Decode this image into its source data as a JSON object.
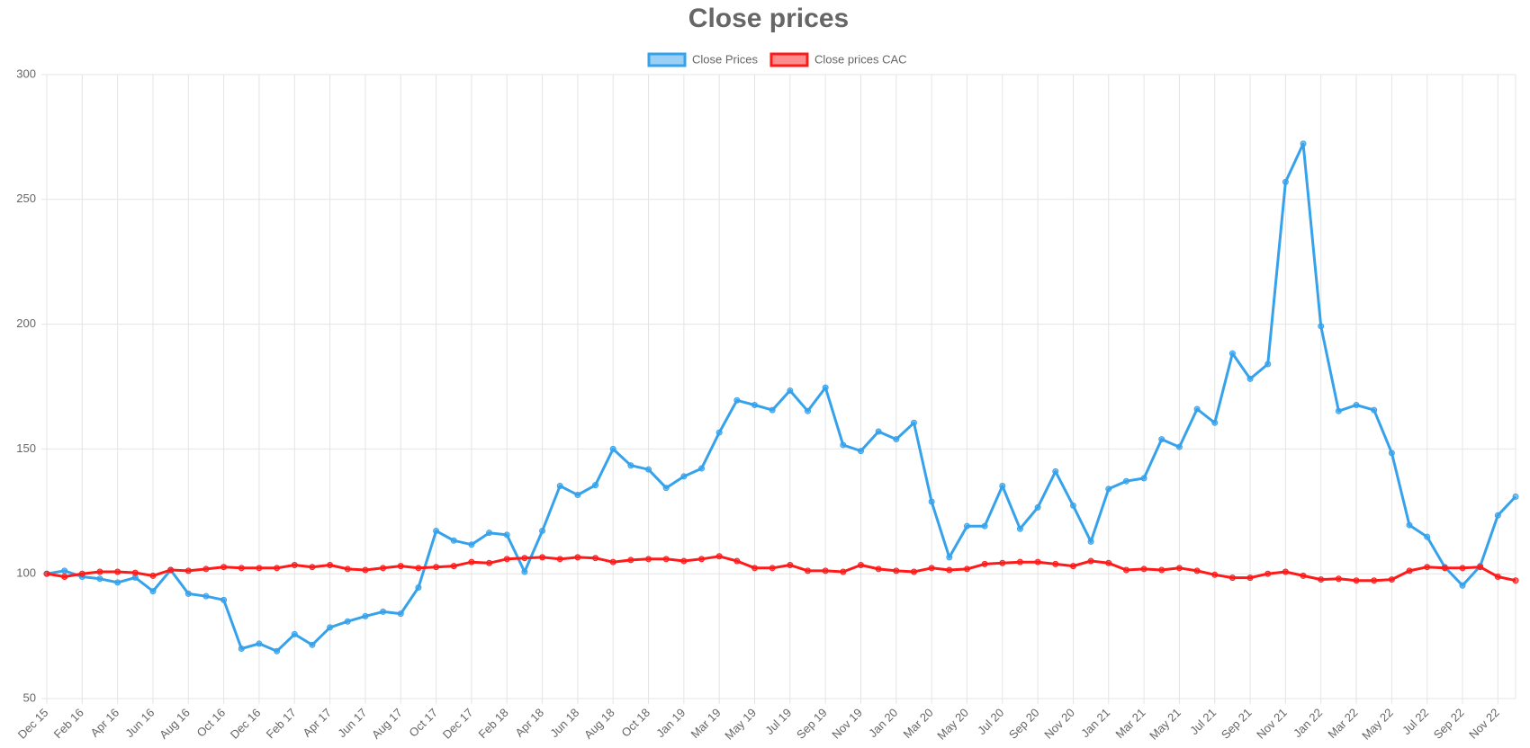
{
  "chart_data": {
    "type": "line",
    "title": "Close prices",
    "categories": [
      "Dec 15",
      null,
      "Feb 16",
      null,
      "Apr 16",
      null,
      "Jun 16",
      null,
      "Aug 16",
      null,
      "Oct 16",
      null,
      "Dec 16",
      null,
      "Feb 17",
      null,
      "Apr 17",
      null,
      "Jun 17",
      null,
      "Aug 17",
      null,
      "Oct 17",
      null,
      "Dec 17",
      null,
      "Feb 18",
      null,
      "Apr 18",
      null,
      "Jun 18",
      null,
      "Aug 18",
      null,
      "Oct 18",
      null,
      "Jan 19",
      null,
      "Mar 19",
      null,
      "May 19",
      null,
      "Jul 19",
      null,
      "Sep 19",
      null,
      "Nov 19",
      null,
      "Jan 20",
      null,
      "Mar 20",
      null,
      "May 20",
      null,
      "Jul 20",
      null,
      "Sep 20",
      null,
      "Nov 20",
      null,
      "Jan 21",
      null,
      "Mar 21",
      null,
      "May 21",
      null,
      "Jul 21",
      null,
      "Sep 21",
      null,
      "Nov 21",
      null,
      "Jan 22",
      null,
      "Mar 22",
      null,
      "May 22",
      null,
      "Jul 22",
      null,
      "Sep 22",
      null,
      "Nov 22",
      null
    ],
    "series": [
      {
        "name": "Close Prices",
        "color": "#36a2eb",
        "values": [
          100,
          101.2,
          98.8,
          98,
          96.5,
          98.5,
          93,
          101.5,
          92,
          91,
          89.5,
          70,
          72,
          69,
          75.8,
          71.5,
          78.5,
          80.9,
          83,
          84.8,
          84,
          94.5,
          117.2,
          113.3,
          111.7,
          116.4,
          115.6,
          100.8,
          117.2,
          135.2,
          131.6,
          135.5,
          150,
          143.4,
          141.8,
          134.4,
          139,
          142.2,
          156.6,
          169.5,
          167.6,
          165.6,
          173.4,
          165.2,
          174.6,
          151.6,
          149.2,
          157,
          153.9,
          160.5,
          128.9,
          106.6,
          119.1,
          119.1,
          135.2,
          118,
          126.6,
          141,
          127.3,
          112.9,
          134,
          137.1,
          138.3,
          153.9,
          150.8,
          166,
          160.5,
          188.3,
          178.1,
          184,
          257,
          272.3,
          199.2,
          165.2,
          167.6,
          165.6,
          148.4,
          119.5,
          114.8,
          102.7,
          95.3,
          103.1,
          123.4,
          130.9
        ]
      },
      {
        "name": "Close prices CAC",
        "color": "#ff1a1a",
        "values": [
          100,
          98.8,
          100,
          100.8,
          100.8,
          100.4,
          99.2,
          101.5,
          101.2,
          101.9,
          102.7,
          102.3,
          102.3,
          102.3,
          103.5,
          102.7,
          103.5,
          101.9,
          101.5,
          102.3,
          103.1,
          102.3,
          102.7,
          103.1,
          104.7,
          104.3,
          105.9,
          106.3,
          106.6,
          105.9,
          106.6,
          106.3,
          104.7,
          105.5,
          105.9,
          105.9,
          105.1,
          105.9,
          107,
          105.1,
          102.3,
          102.3,
          103.5,
          101.2,
          101.2,
          100.8,
          103.5,
          101.9,
          101.2,
          100.8,
          102.3,
          101.5,
          101.9,
          103.9,
          104.3,
          104.7,
          104.7,
          103.9,
          103.1,
          105.1,
          104.3,
          101.5,
          101.9,
          101.5,
          102.3,
          101.2,
          99.6,
          98.4,
          98.4,
          100,
          100.8,
          99.2,
          97.7,
          98,
          97.3,
          97.3,
          97.7,
          101.2,
          102.7,
          102.3,
          102.3,
          102.7,
          98.8,
          97.3
        ]
      }
    ],
    "ylim": [
      50,
      300
    ],
    "yticks": [
      50,
      100,
      150,
      200,
      250,
      300
    ],
    "grid": true,
    "legend": "top"
  }
}
